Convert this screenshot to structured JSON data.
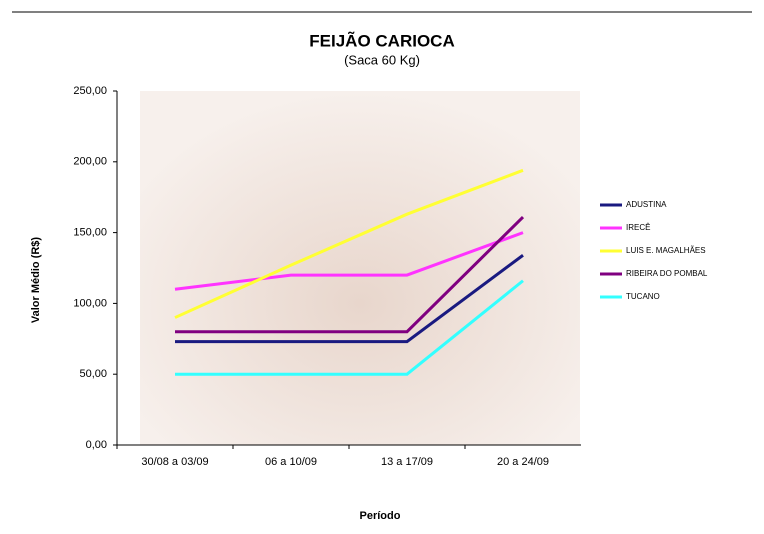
{
  "chart_data": {
    "type": "line",
    "title": "FEIJÃO CARIOCA",
    "subtitle": "(Saca 60 Kg)",
    "y_label": "Valor Médio (R$)",
    "x_label": "Período",
    "categories": [
      "30/08 a 03/09",
      "06 a 10/09",
      "13 a 17/09",
      "20 a 24/09"
    ],
    "series": [
      {
        "name": "ADUSTINA",
        "color": "#1a1a80",
        "values": [
          73,
          73,
          73,
          134
        ]
      },
      {
        "name": "IRECÊ",
        "color": "#ff33ff",
        "values": [
          110,
          120,
          120,
          150
        ]
      },
      {
        "name": "LUIS E. MAGALHÃES",
        "color": "#ffff33",
        "values": [
          90,
          127,
          163,
          194
        ]
      },
      {
        "name": "RIBEIRA DO POMBAL",
        "color": "#800080",
        "values": [
          80,
          80,
          80,
          161
        ]
      },
      {
        "name": "TUCANO",
        "color": "#33ffff",
        "values": [
          50,
          50,
          50,
          116
        ]
      }
    ],
    "ylim": [
      0,
      250
    ],
    "yticks": [
      {
        "value": 0,
        "label": "0,00"
      },
      {
        "value": 50,
        "label": "50,00"
      },
      {
        "value": 100,
        "label": "100,00"
      },
      {
        "value": 150,
        "label": "150,00"
      },
      {
        "value": 200,
        "label": "200,00"
      },
      {
        "value": 250,
        "label": "250,00"
      }
    ],
    "legend": "right"
  }
}
